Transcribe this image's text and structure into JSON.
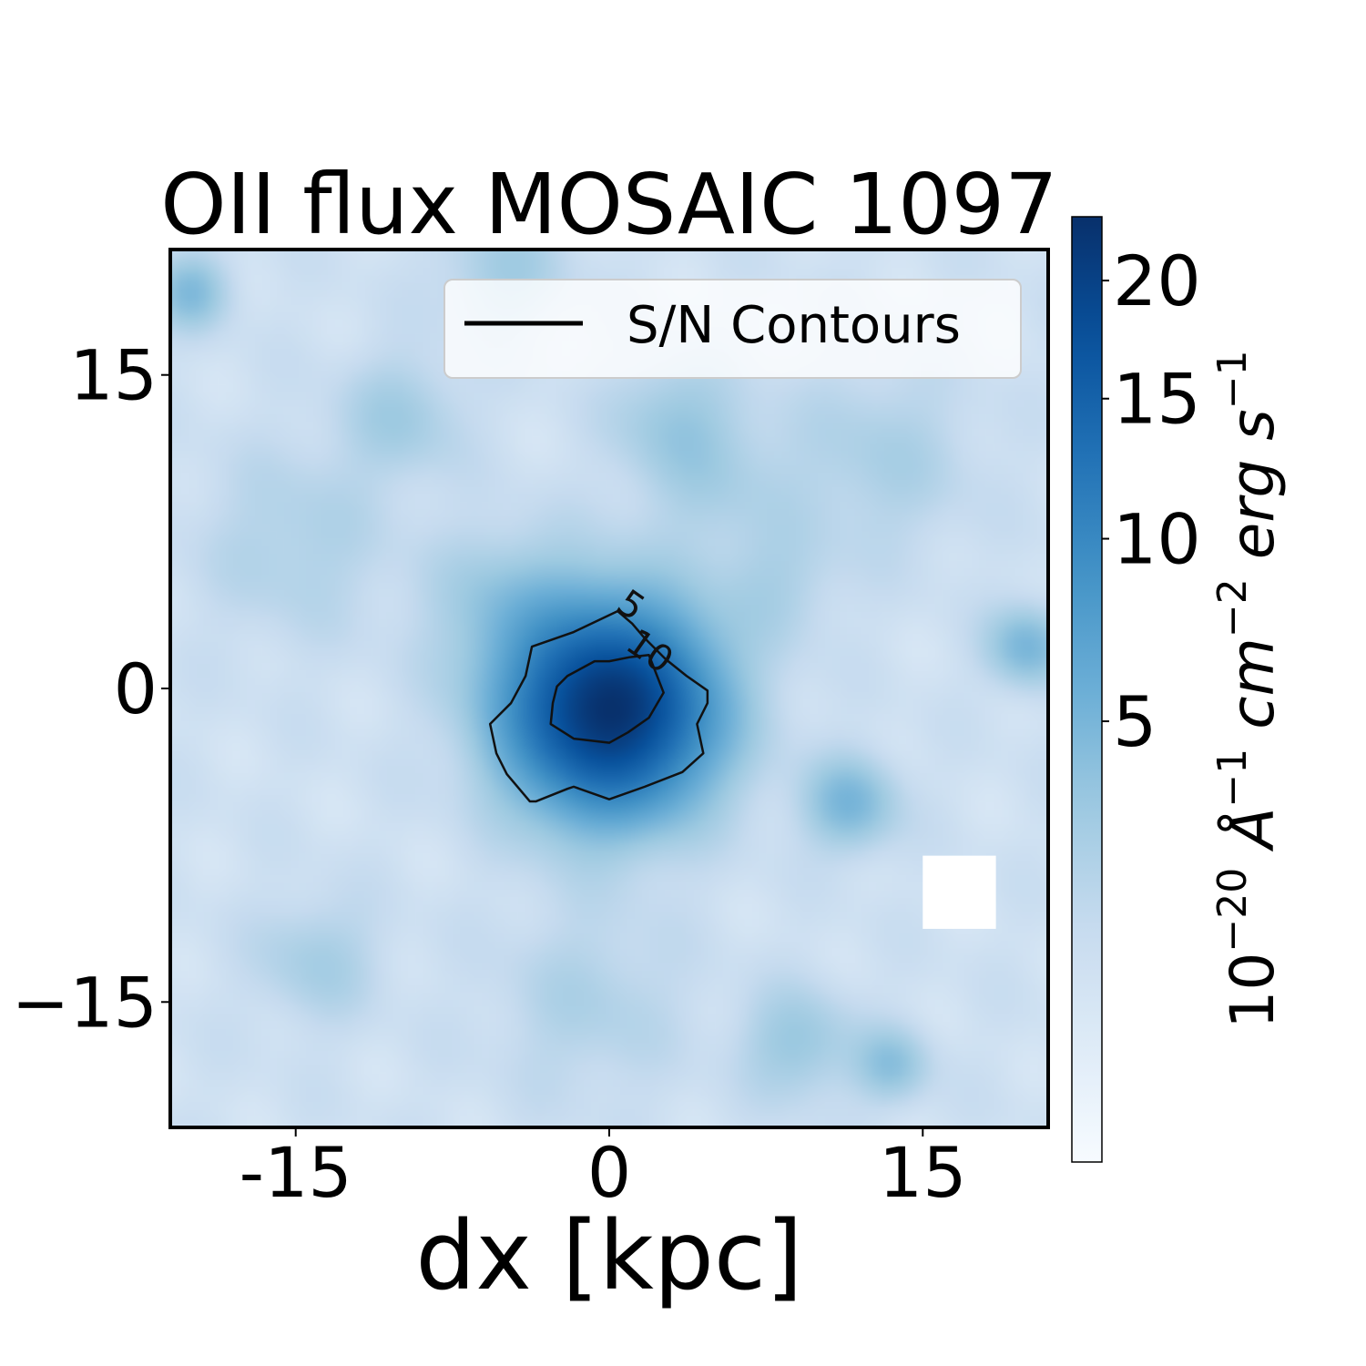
{
  "chart_data": {
    "type": "heatmap",
    "title": "OII flux MOSAIC 1097",
    "xlabel": "dx [kpc]",
    "ylabel": "",
    "xlim": [
      -21,
      21
    ],
    "ylim": [
      -21,
      21
    ],
    "x_ticks": [
      -15,
      0,
      15
    ],
    "x_tick_labels": [
      "-15",
      "0",
      "15"
    ],
    "y_ticks": [
      15,
      0,
      -15
    ],
    "y_tick_labels": [
      "15",
      "0",
      "−15"
    ],
    "colormap": "Blues",
    "colorbar": {
      "label": "10⁻²⁰ Å⁻¹ cm⁻² erg s⁻¹",
      "scale": "sqrt",
      "range": [
        0,
        23
      ],
      "ticks": [
        5,
        10,
        15,
        20
      ],
      "tick_labels": [
        "5",
        "10",
        "15",
        "20"
      ]
    },
    "legend": {
      "label": "S/N Contours",
      "placement": "upper right"
    },
    "peak": {
      "x": 0,
      "y": -1,
      "value": 23
    },
    "emission_blobs": [
      {
        "x": 0,
        "y": -1,
        "amplitude": 22,
        "sigma": 3.2
      },
      {
        "x": 11.5,
        "y": -5.5,
        "amplitude": 4,
        "sigma": 1.5
      },
      {
        "x": 20,
        "y": 2,
        "amplitude": 4,
        "sigma": 1.3
      },
      {
        "x": -20,
        "y": 19,
        "amplitude": 3.5,
        "sigma": 1.2
      },
      {
        "x": 13.5,
        "y": -18,
        "amplitude": 3,
        "sigma": 1.2
      },
      {
        "x": -10,
        "y": 13,
        "amplitude": 2,
        "sigma": 2
      },
      {
        "x": 3,
        "y": 13,
        "amplitude": 2,
        "sigma": 2
      },
      {
        "x": -5,
        "y": 20,
        "amplitude": 2,
        "sigma": 2
      },
      {
        "x": 9,
        "y": -17,
        "amplitude": 2.5,
        "sigma": 1.8
      },
      {
        "x": -14,
        "y": -13,
        "amplitude": 1.8,
        "sigma": 2
      },
      {
        "x": -5,
        "y": 4,
        "amplitude": 2.2,
        "sigma": 2.5
      },
      {
        "x": -15,
        "y": 7,
        "amplitude": 1.5,
        "sigma": 3
      },
      {
        "x": 13,
        "y": 11,
        "amplitude": 1.6,
        "sigma": 3
      },
      {
        "x": -1,
        "y": -15,
        "amplitude": 1.4,
        "sigma": 3
      },
      {
        "x": 5,
        "y": 10,
        "amplitude": 1.5,
        "sigma": 2.5
      },
      {
        "x": 8,
        "y": 5,
        "amplitude": 1.4,
        "sigma": 2
      }
    ],
    "masked_region": {
      "x": [
        15,
        18.5
      ],
      "y": [
        -11.5,
        -8
      ]
    },
    "contours": [
      {
        "level": "5",
        "label_position": {
          "x": 0.7,
          "y": 3.5
        },
        "points": [
          [
            0.4,
            3.7
          ],
          [
            -1.7,
            2.7
          ],
          [
            -3.7,
            2.0
          ],
          [
            -4.0,
            0.6
          ],
          [
            -4.7,
            -0.7
          ],
          [
            -5.7,
            -1.7
          ],
          [
            -5.4,
            -3.1
          ],
          [
            -4.9,
            -4.1
          ],
          [
            -3.8,
            -5.4
          ],
          [
            -3.5,
            -5.4
          ],
          [
            -2.0,
            -4.8
          ],
          [
            -1.7,
            -4.7
          ],
          [
            0.0,
            -5.3
          ],
          [
            1.7,
            -4.7
          ],
          [
            3.5,
            -4.0
          ],
          [
            4.5,
            -3.1
          ],
          [
            4.2,
            -1.7
          ],
          [
            4.7,
            -0.7
          ],
          [
            4.7,
            -0.1
          ],
          [
            3.7,
            0.6
          ],
          [
            2.7,
            1.4
          ],
          [
            1.7,
            2.4
          ],
          [
            1.1,
            3.1
          ]
        ]
      },
      {
        "level": "10",
        "label_position": {
          "x": 1.6,
          "y": 1.3
        },
        "points": [
          [
            -2.0,
            0.6
          ],
          [
            -2.5,
            0.1
          ],
          [
            -2.7,
            -0.7
          ],
          [
            -2.8,
            -1.7
          ],
          [
            -1.7,
            -2.4
          ],
          [
            0.0,
            -2.6
          ],
          [
            0.9,
            -2.1
          ],
          [
            1.9,
            -1.4
          ],
          [
            2.6,
            -0.2
          ],
          [
            1.9,
            1.6
          ],
          [
            1.0,
            1.5
          ],
          [
            0.0,
            1.3
          ],
          [
            -0.7,
            1.3
          ]
        ]
      }
    ]
  }
}
